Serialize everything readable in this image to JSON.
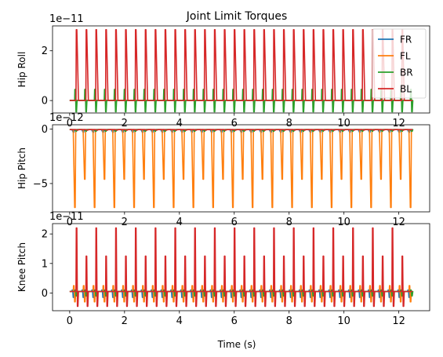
{
  "chart_data": {
    "type": "line",
    "title": "Joint Limit Torques",
    "xlabel": "Time (s)",
    "legend": {
      "placement": "top-right",
      "entries": [
        "FR",
        "FL",
        "BR",
        "BL"
      ]
    },
    "colors": {
      "FR": "#1f77b4",
      "FL": "#ff7f0e",
      "BR": "#2ca02c",
      "BL": "#d62728"
    },
    "x_range": [
      0,
      12.5
    ],
    "gait_period_s": 0.36,
    "subplots": [
      {
        "ylabel": "Hip Roll",
        "offset_text": "1e−11",
        "xlim": [
          -0.625,
          13.125
        ],
        "ylim": [
          -0.5,
          3.0
        ],
        "xticks": [
          "0",
          "2",
          "4",
          "6",
          "8",
          "10",
          "12"
        ],
        "yticks": [
          "0",
          "2"
        ],
        "baseline": 0,
        "series": [
          {
            "name": "FR",
            "spike_peak": 0,
            "spike_trough": 0
          },
          {
            "name": "FL",
            "spike_peak": 0,
            "spike_trough": 0
          },
          {
            "name": "BR",
            "spike_peak": 0.45,
            "spike_trough": -0.45
          },
          {
            "name": "BL",
            "spike_peak": 2.85,
            "spike_trough": 0
          }
        ]
      },
      {
        "ylabel": "Hip Pitch",
        "offset_text": "1e−12",
        "xlim": [
          -0.625,
          13.125
        ],
        "ylim": [
          -7.6,
          0.4
        ],
        "xticks": [
          "0",
          "2",
          "4",
          "6",
          "8",
          "10",
          "12"
        ],
        "yticks": [
          "−5",
          "0"
        ],
        "baseline": -0.05,
        "series": [
          {
            "name": "FR",
            "spike_peak": 0,
            "spike_trough": -0.3
          },
          {
            "name": "FL",
            "spike_peak": 0,
            "spike_trough": -7.2,
            "secondary_trough": -4.6
          },
          {
            "name": "BR",
            "spike_peak": 0,
            "spike_trough": -0.2
          },
          {
            "name": "BL",
            "spike_peak": 0,
            "spike_trough": -0.1
          }
        ]
      },
      {
        "ylabel": "Knee Pitch",
        "offset_text": "1e−11",
        "xlim": [
          -0.625,
          13.125
        ],
        "ylim": [
          -0.6,
          2.35
        ],
        "xticks": [
          "0",
          "2",
          "4",
          "6",
          "8",
          "10",
          "12"
        ],
        "yticks": [
          "0",
          "1",
          "2"
        ],
        "baseline": 0.05,
        "series": [
          {
            "name": "FR",
            "spike_peak": 0.1,
            "spike_trough": -0.15
          },
          {
            "name": "FL",
            "spike_peak": 0.25,
            "spike_trough": -0.3
          },
          {
            "name": "BR",
            "spike_peak": 0.1,
            "spike_trough": -0.1
          },
          {
            "name": "BL",
            "spike_peak": 2.2,
            "spike_trough": -0.45,
            "secondary_peak": 1.25
          }
        ]
      }
    ]
  }
}
